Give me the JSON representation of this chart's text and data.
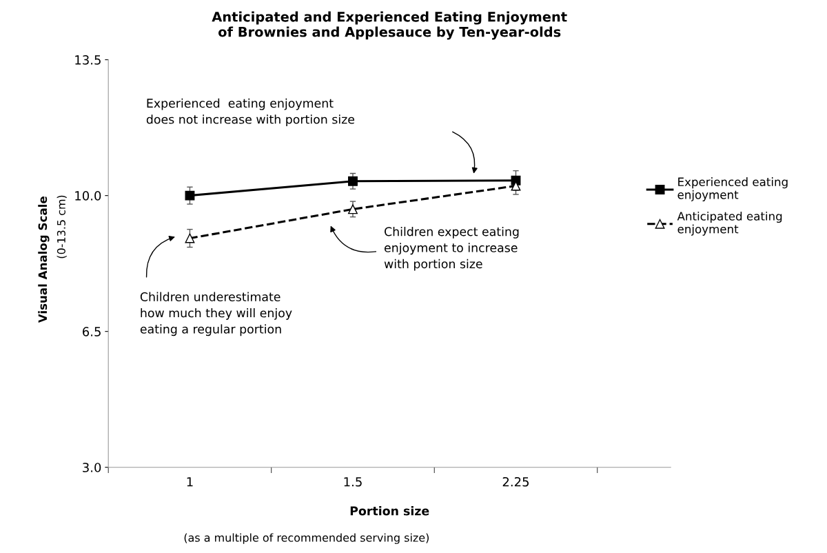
{
  "chart_data": {
    "type": "line",
    "title": "Anticipated and Experienced Eating Enjoyment\nof Brownies and Applesauce by Ten-year-olds",
    "xlabel": "Portion size",
    "ylabel": "Visual Analog Scale",
    "categories": [
      "1",
      "1.5",
      "2.25"
    ],
    "series": [
      {
        "name": "Experienced eating\nenjoyment",
        "color": "#000000",
        "values": [
          10.0,
          10.37,
          10.39
        ],
        "errors": [
          0.22,
          0.2,
          0.25
        ],
        "marker": "square",
        "line_style": "solid"
      },
      {
        "name": "Anticipated eating\nenjoyment",
        "color": "#000000",
        "values": [
          8.9,
          9.65,
          10.25
        ],
        "errors": [
          0.23,
          0.2,
          0.22
        ],
        "marker": "triangle",
        "line_style": "dashed"
      }
    ],
    "ylim": [
      3.0,
      13.5
    ],
    "yticks": [
      {
        "value": 3.0,
        "label": "3.0"
      },
      {
        "value": 6.5,
        "label": "6.5"
      },
      {
        "value": 10.0,
        "label": "10.0"
      },
      {
        "value": 13.5,
        "label": "13.5"
      }
    ],
    "grid": false,
    "legend": "right",
    "annotations": [
      "Experienced  eating enjoyment\ndoes not increase with portion size",
      "Children expect eating\nenjoyment to increase\nwith portion size",
      "Children underestimate\nhow much they will enjoy\neating a regular portion",
      "(0-13.5 cm)",
      "(as a multiple of recommended serving size)"
    ]
  }
}
